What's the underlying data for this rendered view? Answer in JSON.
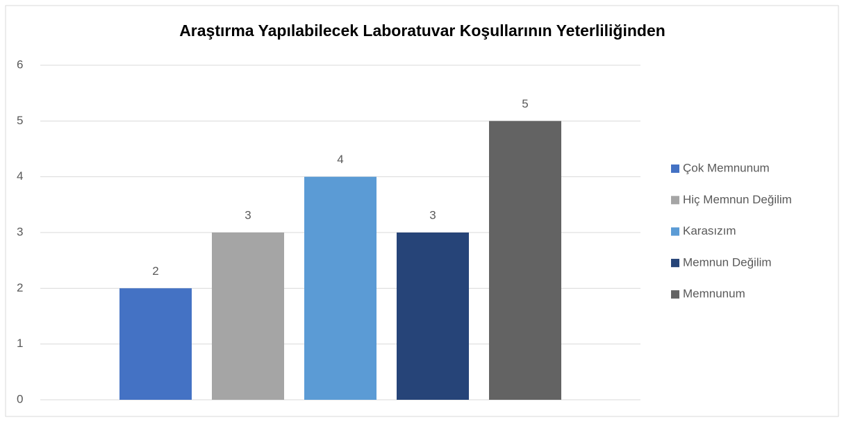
{
  "chart_data": {
    "type": "bar",
    "title": "Araştırma Yapılabilecek Laboratuvar Koşullarının Yeterliliğinden",
    "categories": [
      null
    ],
    "series": [
      {
        "name": "Çok Memnunum",
        "color": "#4472c4",
        "values": [
          2
        ]
      },
      {
        "name": "Hiç Memnun Değilim",
        "color": "#a5a5a5",
        "values": [
          3
        ]
      },
      {
        "name": "Karasızım",
        "color": "#5b9bd5",
        "values": [
          4
        ]
      },
      {
        "name": "Memnun Değilim",
        "color": "#264478",
        "values": [
          3
        ]
      },
      {
        "name": "Memnunum",
        "color": "#636363",
        "values": [
          5
        ]
      }
    ],
    "ylim": [
      0,
      6
    ],
    "yticks": [
      0,
      1,
      2,
      3,
      4,
      5,
      6
    ],
    "grid": true,
    "legend": "right"
  }
}
